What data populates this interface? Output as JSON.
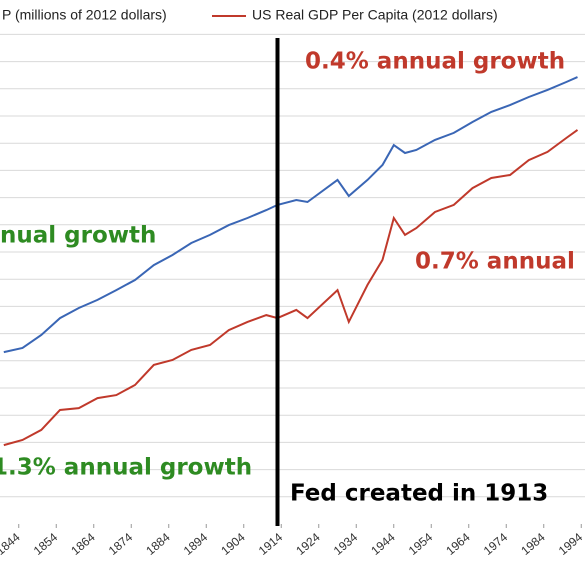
{
  "chart_data": {
    "type": "line",
    "x": [
      1840,
      1845,
      1850,
      1855,
      1860,
      1865,
      1870,
      1875,
      1880,
      1885,
      1890,
      1895,
      1900,
      1905,
      1910,
      1913,
      1918,
      1921,
      1929,
      1932,
      1937,
      1941,
      1944,
      1947,
      1950,
      1955,
      1960,
      1965,
      1970,
      1975,
      1980,
      1985,
      1990,
      1993
    ],
    "series": [
      {
        "name": "P (millions of 2012 dollars)",
        "color": "#3a66b5",
        "values": [
          6.32,
          6.47,
          6.95,
          7.57,
          7.94,
          8.24,
          8.6,
          8.97,
          9.52,
          9.89,
          10.33,
          10.63,
          10.99,
          11.25,
          11.54,
          11.73,
          11.91,
          11.84,
          12.65,
          12.06,
          12.65,
          13.2,
          13.93,
          13.64,
          13.75,
          14.12,
          14.38,
          14.78,
          15.15,
          15.4,
          15.7,
          15.96,
          16.25,
          16.43
        ]
      },
      {
        "name": "US Real GDP Per Capita (2012 dollars)",
        "color": "#c0392b",
        "values": [
          2.9,
          3.09,
          3.46,
          4.19,
          4.26,
          4.63,
          4.74,
          5.11,
          5.85,
          6.03,
          6.4,
          6.58,
          7.13,
          7.43,
          7.68,
          7.57,
          7.87,
          7.57,
          8.6,
          7.43,
          8.79,
          9.71,
          11.25,
          10.63,
          10.88,
          11.47,
          11.73,
          12.35,
          12.72,
          12.83,
          13.38,
          13.68,
          14.19,
          14.49
        ]
      }
    ],
    "xlim": [
      1839,
      1995
    ],
    "xticks": [
      1844,
      1854,
      1864,
      1874,
      1884,
      1894,
      1904,
      1914,
      1924,
      1934,
      1944,
      1954,
      1964,
      1974,
      1984,
      1994
    ],
    "ylim": [
      0,
      18
    ],
    "grid_lines": [
      1,
      2,
      3,
      4,
      5,
      6,
      7,
      8,
      9,
      10,
      11,
      12,
      13,
      14,
      15,
      16,
      17,
      18
    ],
    "fed_line": 1913,
    "annotations": [
      {
        "text": "0.4% annual growth",
        "color": "#c0392b"
      },
      {
        "text": "nual growth",
        "color": "#2e8b22"
      },
      {
        "text": "0.7% annual",
        "color": "#c0392b"
      },
      {
        "text": "1.3% annual growth",
        "color": "#2e8b22"
      },
      {
        "text": "Fed created in 1913",
        "color": "#000000"
      }
    ]
  }
}
